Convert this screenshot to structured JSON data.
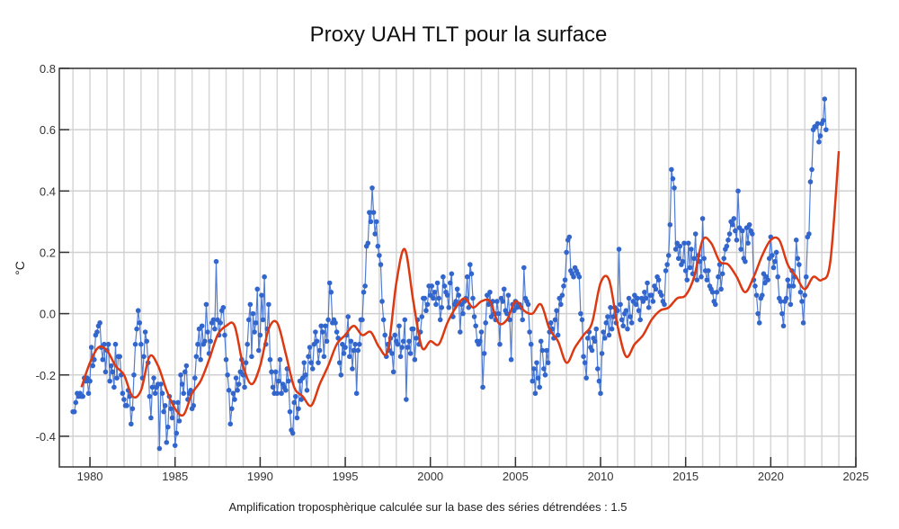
{
  "chart_data": {
    "type": "line",
    "title": "Proxy UAH TLT pour la surface",
    "xlabel": "",
    "ylabel": "°C",
    "annotation": "Amplification troposphèrique calculée sur la base des séries détrendées : 1.5",
    "xlim": [
      1978.2,
      2025
    ],
    "ylim": [
      -0.5,
      0.8
    ],
    "xticks": [
      1980,
      1985,
      1990,
      1995,
      2000,
      2005,
      2010,
      2015,
      2020,
      2025
    ],
    "yticks": [
      -0.4,
      -0.2,
      0.0,
      0.2,
      0.4,
      0.6,
      0.8
    ],
    "ytick_labels": [
      "-0.4",
      "-0.2",
      "0.0",
      "0.2",
      "0.4",
      "0.6",
      "0.8"
    ],
    "grid": true,
    "colors": {
      "monthly": "#3366cc",
      "smoothed": "#dc3912"
    },
    "series": [
      {
        "name": "monthly",
        "start_year": 1979.0,
        "step": 0.08333,
        "values": [
          -0.32,
          -0.32,
          -0.29,
          -0.26,
          -0.27,
          -0.26,
          -0.27,
          -0.27,
          -0.21,
          -0.22,
          -0.21,
          -0.26,
          -0.22,
          -0.11,
          -0.17,
          -0.15,
          -0.07,
          -0.06,
          -0.04,
          -0.03,
          -0.11,
          -0.15,
          -0.1,
          -0.19,
          -0.12,
          -0.1,
          -0.22,
          -0.17,
          -0.19,
          -0.24,
          -0.1,
          -0.21,
          -0.14,
          -0.14,
          -0.2,
          -0.26,
          -0.28,
          -0.3,
          -0.3,
          -0.25,
          -0.27,
          -0.36,
          -0.31,
          -0.2,
          -0.1,
          -0.05,
          0.01,
          -0.03,
          -0.1,
          -0.21,
          -0.14,
          -0.06,
          -0.09,
          -0.16,
          -0.27,
          -0.34,
          -0.24,
          -0.21,
          -0.26,
          -0.24,
          -0.23,
          -0.44,
          -0.23,
          -0.26,
          -0.32,
          -0.3,
          -0.42,
          -0.37,
          -0.27,
          -0.31,
          -0.34,
          -0.29,
          -0.43,
          -0.39,
          -0.29,
          -0.35,
          -0.2,
          -0.23,
          -0.26,
          -0.19,
          -0.17,
          -0.28,
          -0.26,
          -0.25,
          -0.31,
          -0.3,
          -0.21,
          -0.14,
          -0.1,
          -0.05,
          -0.15,
          -0.04,
          -0.1,
          -0.09,
          0.03,
          -0.06,
          -0.13,
          -0.09,
          -0.03,
          -0.02,
          -0.05,
          0.17,
          -0.02,
          -0.07,
          -0.03,
          0.01,
          0.02,
          -0.07,
          -0.15,
          -0.2,
          -0.25,
          -0.36,
          -0.31,
          -0.26,
          -0.28,
          -0.21,
          -0.25,
          -0.23,
          -0.19,
          -0.15,
          -0.2,
          -0.24,
          -0.16,
          -0.1,
          -0.02,
          0.03,
          -0.14,
          0.0,
          -0.06,
          -0.03,
          0.08,
          -0.12,
          -0.07,
          0.06,
          -0.02,
          0.12,
          -0.1,
          -0.05,
          0.03,
          -0.15,
          -0.19,
          -0.24,
          -0.26,
          -0.19,
          -0.26,
          -0.22,
          -0.15,
          -0.26,
          -0.23,
          -0.24,
          -0.25,
          -0.18,
          -0.22,
          -0.32,
          -0.38,
          -0.39,
          -0.29,
          -0.27,
          -0.34,
          -0.31,
          -0.22,
          -0.28,
          -0.21,
          -0.16,
          -0.2,
          -0.25,
          -0.14,
          -0.11,
          -0.16,
          -0.18,
          -0.1,
          -0.06,
          -0.09,
          -0.16,
          -0.12,
          -0.04,
          -0.06,
          -0.14,
          -0.04,
          -0.09,
          -0.02,
          0.1,
          0.07,
          -0.03,
          -0.02,
          -0.03,
          -0.06,
          -0.08,
          -0.16,
          -0.2,
          -0.1,
          -0.13,
          -0.11,
          -0.07,
          -0.01,
          -0.14,
          -0.09,
          -0.18,
          -0.12,
          -0.1,
          -0.26,
          -0.12,
          -0.1,
          -0.02,
          -0.02,
          0.07,
          0.09,
          0.22,
          0.23,
          0.33,
          0.3,
          0.41,
          0.33,
          0.26,
          0.3,
          0.22,
          0.19,
          0.16,
          0.04,
          -0.02,
          -0.07,
          -0.14,
          -0.1,
          -0.12,
          -0.08,
          -0.13,
          -0.19,
          -0.07,
          -0.09,
          -0.1,
          -0.04,
          -0.14,
          -0.11,
          -0.09,
          -0.02,
          -0.28,
          -0.11,
          -0.09,
          -0.13,
          -0.05,
          -0.05,
          -0.15,
          -0.08,
          -0.02,
          -0.1,
          -0.06,
          -0.01,
          0.05,
          0.05,
          0.01,
          0.03,
          0.09,
          0.06,
          0.09,
          0.05,
          0.07,
          0.03,
          0.1,
          0.05,
          -0.02,
          0.02,
          0.12,
          0.09,
          0.07,
          0.06,
          0.02,
          0.1,
          0.13,
          -0.01,
          0.03,
          0.04,
          0.08,
          0.06,
          -0.06,
          0.03,
          0.0,
          0.04,
          0.05,
          0.12,
          0.02,
          0.16,
          0.13,
          0.05,
          -0.01,
          -0.04,
          -0.09,
          -0.1,
          -0.09,
          -0.06,
          -0.24,
          -0.13,
          -0.03,
          0.06,
          0.03,
          0.07,
          -0.01,
          0.04,
          0.0,
          -0.02,
          0.04,
          0.0,
          -0.1,
          0.05,
          0.04,
          0.08,
          0.01,
          0.0,
          0.06,
          -0.02,
          -0.15,
          0.03,
          0.01,
          0.04,
          0.02,
          0.03,
          0.03,
          0.02,
          -0.02,
          0.15,
          0.05,
          0.04,
          0.03,
          -0.06,
          -0.1,
          -0.22,
          -0.18,
          -0.26,
          -0.16,
          -0.21,
          -0.24,
          -0.09,
          -0.12,
          -0.18,
          -0.2,
          -0.12,
          -0.16,
          -0.06,
          -0.03,
          -0.05,
          -0.08,
          -0.02,
          0.01,
          -0.07,
          0.05,
          0.03,
          0.06,
          0.09,
          0.11,
          0.2,
          0.24,
          0.25,
          0.14,
          0.13,
          0.12,
          0.15,
          0.14,
          0.13,
          0.12,
          0.0,
          -0.02,
          -0.14,
          -0.16,
          -0.21,
          -0.08,
          -0.06,
          -0.11,
          -0.12,
          -0.08,
          -0.09,
          -0.05,
          -0.18,
          -0.22,
          -0.26,
          -0.13,
          -0.06,
          -0.08,
          -0.03,
          -0.01,
          -0.07,
          0.02,
          -0.05,
          -0.01,
          0.02,
          -0.03,
          0.01,
          0.21,
          0.03,
          -0.02,
          -0.04,
          0.0,
          0.01,
          -0.05,
          0.05,
          -0.01,
          -0.03,
          0.04,
          0.06,
          0.03,
          0.05,
          0.01,
          -0.02,
          0.05,
          0.04,
          0.07,
          0.05,
          0.1,
          0.02,
          0.06,
          0.06,
          0.04,
          0.09,
          0.08,
          0.12,
          0.11,
          0.07,
          0.06,
          0.04,
          0.03,
          0.14,
          0.16,
          0.19,
          0.29,
          0.47,
          0.44,
          0.41,
          0.21,
          0.23,
          0.18,
          0.22,
          0.16,
          0.17,
          0.23,
          0.14,
          0.11,
          0.23,
          0.15,
          0.21,
          0.13,
          0.18,
          0.26,
          0.11,
          0.19,
          0.17,
          0.12,
          0.31,
          0.18,
          0.14,
          0.11,
          0.14,
          0.09,
          0.08,
          0.07,
          0.04,
          0.03,
          0.07,
          0.12,
          0.16,
          0.08,
          0.13,
          0.18,
          0.21,
          0.22,
          0.24,
          0.26,
          0.3,
          0.29,
          0.31,
          0.27,
          0.24,
          0.4,
          0.28,
          0.21,
          0.27,
          0.18,
          0.17,
          0.28,
          0.23,
          0.29,
          0.27,
          0.26,
          0.11,
          0.09,
          0.06,
          0.0,
          -0.03,
          0.05,
          0.06,
          0.13,
          0.1,
          0.12,
          0.11,
          0.18,
          0.25,
          0.19,
          0.15,
          0.17,
          0.2,
          0.12,
          0.05,
          0.04,
          0.0,
          -0.04,
          0.04,
          0.05,
          0.11,
          0.09,
          0.03,
          0.14,
          0.09,
          0.12,
          0.24,
          0.18,
          0.16,
          0.07,
          0.04,
          -0.03,
          0.06,
          0.12,
          0.25,
          0.26,
          0.43,
          0.47,
          0.6,
          0.61,
          0.61,
          0.62,
          0.56,
          0.58,
          0.62,
          0.63,
          0.7,
          0.6
        ]
      },
      {
        "name": "smoothed",
        "x": [
          1979.5,
          1980.0,
          1980.5,
          1981.0,
          1981.5,
          1982.0,
          1982.5,
          1983.0,
          1983.5,
          1984.0,
          1984.5,
          1985.0,
          1985.5,
          1986.0,
          1986.5,
          1987.0,
          1987.5,
          1988.0,
          1988.5,
          1989.0,
          1989.5,
          1990.0,
          1990.5,
          1991.0,
          1991.5,
          1992.0,
          1992.5,
          1993.0,
          1993.5,
          1994.0,
          1994.5,
          1995.0,
          1995.5,
          1996.0,
          1996.5,
          1997.0,
          1997.5,
          1998.0,
          1998.5,
          1999.0,
          1999.5,
          2000.0,
          2000.5,
          2001.0,
          2001.5,
          2002.0,
          2002.5,
          2003.0,
          2003.5,
          2004.0,
          2004.5,
          2005.0,
          2005.5,
          2006.0,
          2006.5,
          2007.0,
          2007.5,
          2008.0,
          2008.5,
          2009.0,
          2009.5,
          2010.0,
          2010.5,
          2011.0,
          2011.5,
          2012.0,
          2012.5,
          2013.0,
          2013.5,
          2014.0,
          2014.5,
          2015.0,
          2015.5,
          2016.0,
          2016.5,
          2017.0,
          2017.5,
          2018.0,
          2018.5,
          2019.0,
          2019.5,
          2020.0,
          2020.5,
          2021.0,
          2021.5,
          2022.0,
          2022.5,
          2023.0,
          2023.5,
          2024.0
        ],
        "values": [
          -0.24,
          -0.16,
          -0.11,
          -0.12,
          -0.17,
          -0.2,
          -0.27,
          -0.25,
          -0.14,
          -0.17,
          -0.25,
          -0.31,
          -0.33,
          -0.26,
          -0.22,
          -0.15,
          -0.07,
          -0.04,
          -0.04,
          -0.17,
          -0.23,
          -0.17,
          -0.05,
          -0.03,
          -0.13,
          -0.24,
          -0.27,
          -0.3,
          -0.23,
          -0.17,
          -0.1,
          -0.07,
          -0.04,
          -0.07,
          -0.06,
          -0.11,
          -0.12,
          0.1,
          0.21,
          0.04,
          -0.11,
          -0.09,
          -0.1,
          -0.03,
          0.02,
          0.05,
          0.02,
          0.04,
          0.04,
          -0.03,
          -0.02,
          0.04,
          0.01,
          0.0,
          0.03,
          -0.05,
          -0.09,
          -0.16,
          -0.11,
          -0.07,
          -0.03,
          0.1,
          0.11,
          -0.04,
          -0.14,
          -0.1,
          -0.07,
          -0.02,
          0.01,
          0.02,
          0.05,
          0.06,
          0.12,
          0.24,
          0.23,
          0.17,
          0.16,
          0.12,
          0.07,
          0.12,
          0.19,
          0.24,
          0.24,
          0.16,
          0.12,
          0.08,
          0.12,
          0.11,
          0.17,
          0.53
        ]
      }
    ]
  }
}
